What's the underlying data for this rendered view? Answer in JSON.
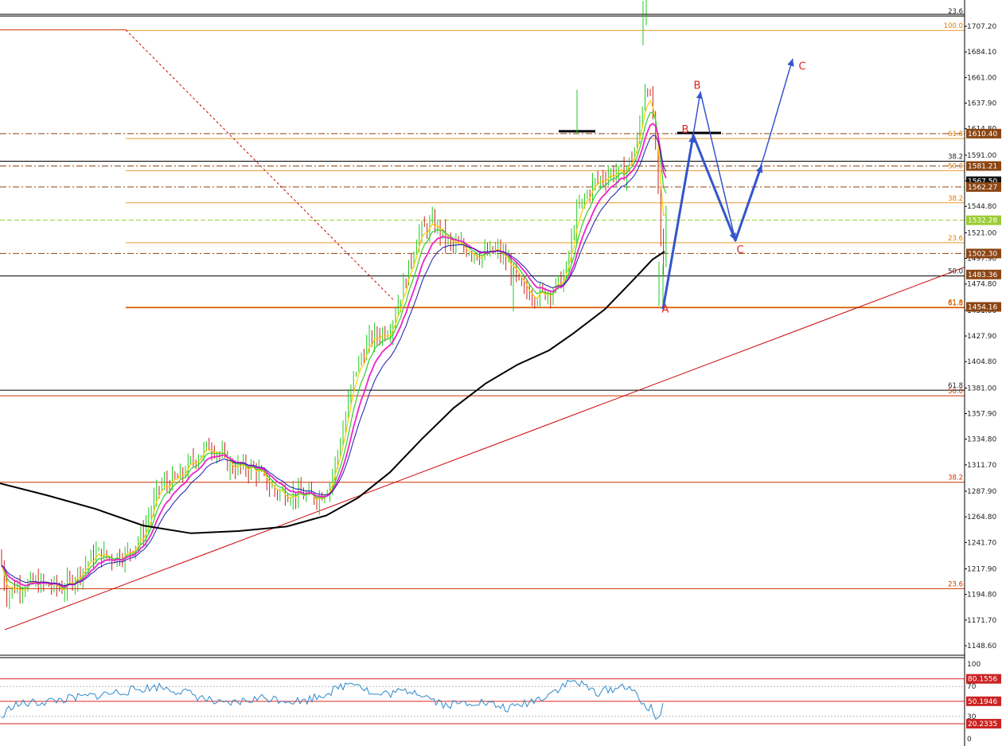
{
  "chart_data": {
    "type": "line",
    "price_axis": {
      "range": [
        1140.0,
        1718.0
      ],
      "ticks": [
        "1707.20",
        "1684.10",
        "1661.00",
        "1637.90",
        "1614.80",
        "1591.00",
        "1567.90",
        "1544.80",
        "1521.00",
        "1497.90",
        "1474.80",
        "1451.00",
        "1427.90",
        "1404.80",
        "1381.00",
        "1357.90",
        "1334.80",
        "1311.70",
        "1287.90",
        "1264.80",
        "1241.70",
        "1217.90",
        "1194.80",
        "1171.70",
        "1148.60"
      ]
    },
    "price_badges": [
      {
        "text": "1610.40",
        "value": 1610.4,
        "color": "#8b4513"
      },
      {
        "text": "1581.21",
        "value": 1581.21,
        "color": "#8b4513"
      },
      {
        "text": "1567.50",
        "value": 1567.5,
        "color": "#111111"
      },
      {
        "text": "1562.27",
        "value": 1562.27,
        "color": "#8b4513"
      },
      {
        "text": "1532.28",
        "value": 1532.28,
        "color": "#9acd32"
      },
      {
        "text": "1502.30",
        "value": 1502.3,
        "color": "#8b4513"
      },
      {
        "text": "1483.36",
        "value": 1483.36,
        "color": "#8b4513"
      },
      {
        "text": "1454.16",
        "value": 1454.16,
        "color": "#8b4513"
      }
    ],
    "fib_large": [
      {
        "label": "23.6",
        "value": 1716.5,
        "color": "#000000"
      },
      {
        "label": "38.2",
        "value": 1585.5,
        "color": "#000000"
      },
      {
        "label": "50.0",
        "value": 1482.0,
        "color": "#000000"
      },
      {
        "label": "61.8",
        "value": 1379.0,
        "color": "#000000"
      }
    ],
    "fib_red": [
      {
        "label": "100.0",
        "value": 1704.0,
        "color": "#cc3300"
      },
      {
        "label": "50.0",
        "value": 1374.0,
        "color": "#cc3300"
      },
      {
        "label": "38.2",
        "value": 1296.0,
        "color": "#cc3300"
      },
      {
        "label": "23.6",
        "value": 1200.0,
        "color": "#cc3300"
      },
      {
        "label": "61.8",
        "value": 1453.3,
        "color": "#cc3300"
      }
    ],
    "fib_orange": [
      {
        "label": "100.0",
        "value": 1703.5
      },
      {
        "label": "61.8",
        "value": 1606.0
      },
      {
        "label": "50.0",
        "value": 1577.0
      },
      {
        "label": "38.2",
        "value": 1548.0
      },
      {
        "label": "23.6",
        "value": 1512.0
      },
      {
        "label": "61.8",
        "value": 1454.0
      }
    ],
    "dashdot_levels": [
      1610.4,
      1581.21,
      1562.27,
      1502.3
    ],
    "green_dash_level": 1532.28,
    "wave_labels": [
      {
        "text": "A",
        "x": 836,
        "value": 1449.0
      },
      {
        "text": "B",
        "x": 861,
        "value": 1611.0
      },
      {
        "text": "B",
        "x": 876,
        "value": 1651.0
      },
      {
        "text": "C",
        "x": 930,
        "value": 1502.5
      },
      {
        "text": "C",
        "x": 1008,
        "value": 1668.0
      }
    ],
    "projection": {
      "bold_path": [
        [
          833,
          1452
        ],
        [
          871,
          1609
        ],
        [
          924,
          1514
        ],
        [
          957,
          1582
        ]
      ],
      "thin_path": [
        [
          871,
          1609
        ],
        [
          880,
          1648
        ],
        [
          924,
          1514
        ],
        [
          960,
          1590
        ],
        [
          996,
          1678
        ]
      ]
    },
    "rsi": {
      "axis_ticks": [
        "100",
        "70",
        "30",
        "0"
      ],
      "levels": [
        {
          "text": "80.1556",
          "value": 80.1556
        },
        {
          "text": "50.1946",
          "value": 50.1946
        },
        {
          "text": "20.2335",
          "value": 20.2335
        }
      ],
      "dotted": [
        70,
        30
      ]
    },
    "colors": {
      "bull": "#22cc22",
      "bear": "#cc2222",
      "ema_fast": "#ffcc00",
      "ema_mid": "#33cc33",
      "ema_pink": "#ee22cc",
      "ema_blue": "#1a1aa8",
      "ma200": "#000000",
      "trend": "#cc0000",
      "projection": "#3355cc",
      "rsi": "#2f89c9"
    }
  }
}
